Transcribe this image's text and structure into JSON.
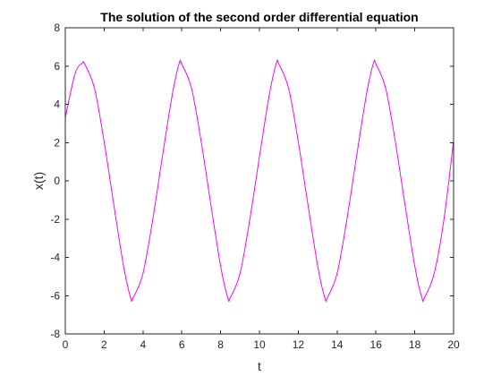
{
  "chart_data": {
    "type": "line",
    "title": "The solution of the second order differential equation",
    "xlabel": "t",
    "ylabel": "x(t)",
    "xlim": [
      0,
      20
    ],
    "ylim": [
      -8,
      8
    ],
    "xticks": [
      0,
      2,
      4,
      6,
      8,
      10,
      12,
      14,
      16,
      18,
      20
    ],
    "yticks": [
      -8,
      -6,
      -4,
      -2,
      0,
      2,
      4,
      6,
      8
    ],
    "grid": false,
    "series": [
      {
        "color": "#ff00ff",
        "x": [
          0,
          0.5,
          0.87,
          1.0,
          1.5,
          2.0,
          2.5,
          3.0,
          3.37,
          3.5,
          4.0,
          4.5,
          5.0,
          5.5,
          5.87,
          6.0,
          6.5,
          7.0,
          7.5,
          8.0,
          8.37,
          8.5,
          9.0,
          9.5,
          10.0,
          10.5,
          10.87,
          11.0,
          11.5,
          12.0,
          12.5,
          13.0,
          13.37,
          13.5,
          14.0,
          14.5,
          15.0,
          15.5,
          15.87,
          16.0,
          16.5,
          17.0,
          17.5,
          18.0,
          18.37,
          18.5,
          19.0,
          19.5,
          20.0
        ],
        "y": [
          3.3,
          5.6,
          6.15,
          6.1,
          4.84,
          2.04,
          -1.26,
          -4.45,
          -6.12,
          -6.1,
          -4.84,
          -2.04,
          1.26,
          4.45,
          6.15,
          6.1,
          4.84,
          2.04,
          -1.26,
          -4.45,
          -6.12,
          -6.1,
          -4.84,
          -2.04,
          1.26,
          4.45,
          6.15,
          6.1,
          4.84,
          2.04,
          -1.26,
          -4.45,
          -6.12,
          -6.1,
          -4.84,
          -2.04,
          1.26,
          4.45,
          6.15,
          6.1,
          4.84,
          2.04,
          -1.26,
          -4.45,
          -6.12,
          -6.1,
          -4.84,
          -2.04,
          2.1
        ]
      }
    ]
  }
}
